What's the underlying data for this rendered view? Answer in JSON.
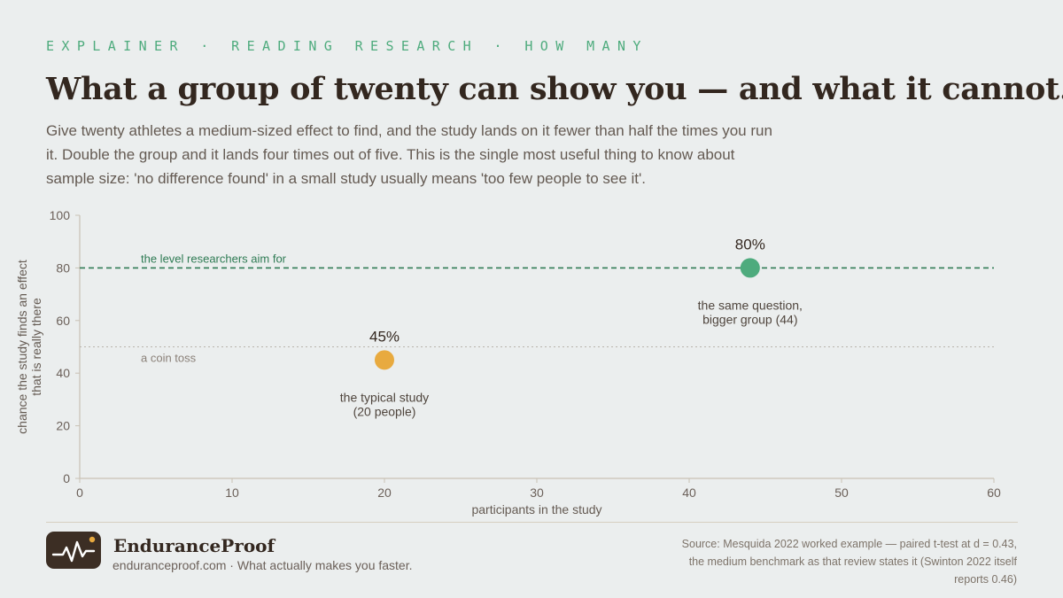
{
  "header": {
    "eyebrow": "EXPLAINER · READING RESEARCH · HOW MANY",
    "title": "What a group of twenty can show you — and what it cannot.",
    "dek": "Give twenty athletes a medium-sized effect to find, and the study lands on it fewer than half the times you run it. Double the group and it lands four times out of five. This is the single most useful thing to know about sample size: 'no difference found' in a small study usually means 'too few people to see it'."
  },
  "colors": {
    "background": "#ebeeee",
    "accent_green": "#4eab7d",
    "target_line": "#2f7b54",
    "small_study": "#e8aa3f",
    "ink": "#33271f",
    "muted": "#645a52"
  },
  "chart_data": {
    "type": "scatter",
    "title": "",
    "xlabel": "participants in the study",
    "ylabel_lines": [
      "chance the study finds an effect",
      "that is really there"
    ],
    "xlim": [
      0,
      60
    ],
    "ylim": [
      0,
      100
    ],
    "x_ticks": [
      0,
      10,
      20,
      30,
      40,
      50,
      60
    ],
    "y_ticks": [
      0,
      20,
      40,
      60,
      80,
      100
    ],
    "grid": false,
    "reference_lines": [
      {
        "y": 80,
        "label": "the level researchers aim for",
        "style": "dashed",
        "color": "#2f7b54"
      },
      {
        "y": 50,
        "label": "a coin toss",
        "style": "dotted",
        "color": "#b9b4ad"
      }
    ],
    "points": [
      {
        "x": 20,
        "y": 45,
        "value_label": "45%",
        "annotation": [
          "the typical study",
          "(20 people)"
        ],
        "color": "#e8aa3f"
      },
      {
        "x": 44,
        "y": 80,
        "value_label": "80%",
        "annotation": [
          "the same question,",
          "bigger group (44)"
        ],
        "color": "#4eab7d"
      }
    ]
  },
  "footer": {
    "brand": "EnduranceProof",
    "tagline": "enduranceproof.com · What actually makes you faster.",
    "logo_icon": "pulse-line-icon",
    "source": "Source: Mesquida 2022 worked example — paired t-test at d = 0.43, the medium benchmark as that review states it (Swinton 2022 itself reports 0.46)"
  }
}
